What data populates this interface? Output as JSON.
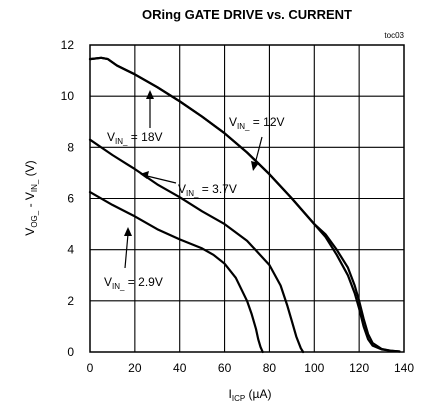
{
  "chart_data": {
    "type": "line",
    "title": "ORing GATE DRIVE vs. CURRENT",
    "figure_id": "toc03",
    "xlabel": {
      "main": "I",
      "sub": "ICP",
      "unit": " (µA)"
    },
    "ylabel": {
      "p1": "V",
      "s1": "OG_",
      "p2": " - V",
      "s2": "IN_",
      "p3": " (V)"
    },
    "xlim": [
      0,
      140
    ],
    "ylim": [
      0,
      12
    ],
    "xticks": [
      "0",
      "20",
      "40",
      "60",
      "80",
      "100",
      "120",
      "140"
    ],
    "yticks": [
      "0",
      "2",
      "4",
      "6",
      "8",
      "10",
      "12"
    ],
    "grid": true,
    "series": [
      {
        "name": "18V",
        "annotation": {
          "prefix": "V",
          "sub": "IN_",
          "suffix": " = 18V"
        },
        "x": [
          0,
          5,
          8,
          12,
          20,
          30,
          40,
          50,
          60,
          70,
          80,
          90,
          100,
          105,
          110,
          115,
          118,
          120,
          122,
          124,
          126,
          130,
          134,
          138
        ],
        "y": [
          11.45,
          11.5,
          11.45,
          11.2,
          10.85,
          10.35,
          9.8,
          9.2,
          8.55,
          7.8,
          6.95,
          6.0,
          5.0,
          4.6,
          4.0,
          3.3,
          2.6,
          2.0,
          1.3,
          0.7,
          0.35,
          0.12,
          0.05,
          0.02
        ]
      },
      {
        "name": "12V",
        "annotation": {
          "prefix": "V",
          "sub": "IN_",
          "suffix": " = 12V"
        },
        "x": [
          0,
          5,
          8,
          12,
          20,
          30,
          40,
          50,
          60,
          70,
          80,
          90,
          100,
          105,
          110,
          115,
          118,
          120,
          122,
          124,
          126,
          130,
          134,
          138
        ],
        "y": [
          11.45,
          11.5,
          11.45,
          11.2,
          10.85,
          10.35,
          9.8,
          9.2,
          8.55,
          7.8,
          6.95,
          6.0,
          5.0,
          4.5,
          3.8,
          3.0,
          2.3,
          1.7,
          1.0,
          0.5,
          0.25,
          0.1,
          0.05,
          0.02
        ]
      },
      {
        "name": "3.7V",
        "annotation": {
          "prefix": "V",
          "sub": "IN_",
          "suffix": " = 3.7V"
        },
        "x": [
          0,
          10,
          20,
          30,
          40,
          50,
          60,
          70,
          80,
          85,
          88,
          90,
          92,
          94,
          95
        ],
        "y": [
          8.3,
          7.7,
          7.15,
          6.55,
          6.05,
          5.5,
          5.0,
          4.35,
          3.4,
          2.6,
          1.8,
          1.2,
          0.6,
          0.15,
          0
        ]
      },
      {
        "name": "2.9V",
        "annotation": {
          "prefix": "V",
          "sub": "IN_",
          "suffix": " = 2.9V"
        },
        "x": [
          0,
          10,
          20,
          30,
          40,
          50,
          55,
          60,
          65,
          70,
          72,
          74,
          75,
          76,
          77
        ],
        "y": [
          6.25,
          5.75,
          5.3,
          4.8,
          4.4,
          4.05,
          3.8,
          3.45,
          2.9,
          2.0,
          1.5,
          0.9,
          0.5,
          0.2,
          0
        ]
      }
    ]
  }
}
